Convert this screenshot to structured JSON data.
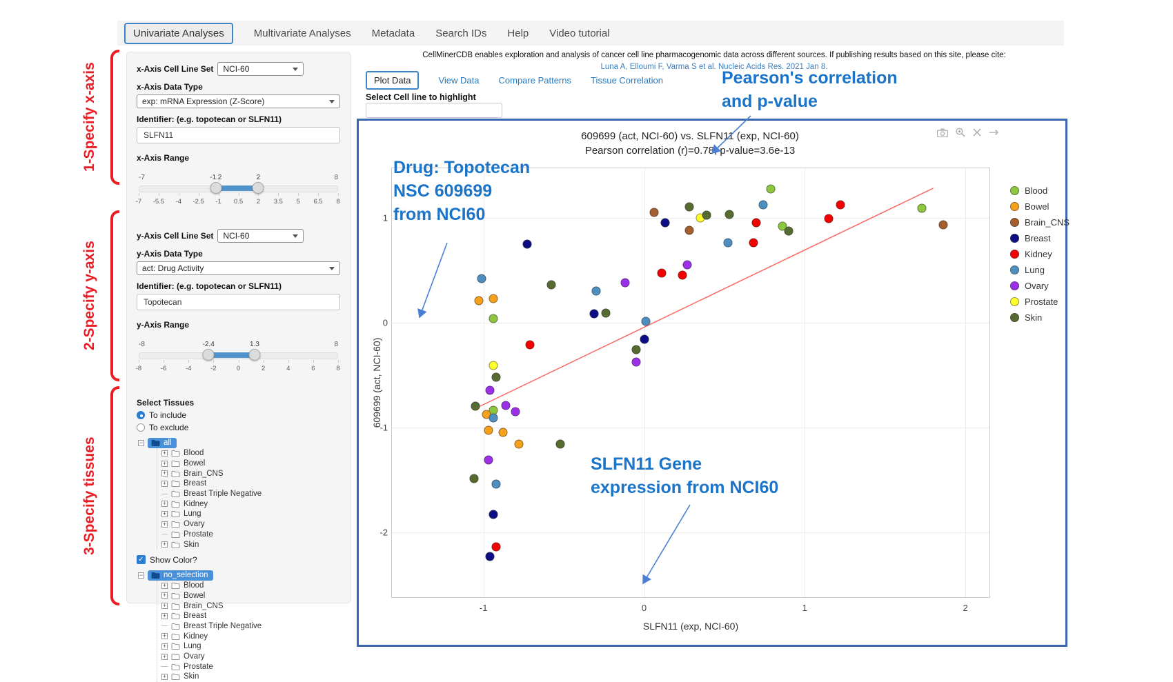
{
  "nav": {
    "items": [
      {
        "label": "Univariate Analyses",
        "active": true
      },
      {
        "label": "Multivariate Analyses",
        "active": false
      },
      {
        "label": "Metadata",
        "active": false
      },
      {
        "label": "Search IDs",
        "active": false
      },
      {
        "label": "Help",
        "active": false
      },
      {
        "label": "Video tutorial",
        "active": false
      }
    ]
  },
  "annotations": {
    "step1": "1-Specify x-axis",
    "step2": "2-Specify y-axis",
    "step3": "3-Specify tissues",
    "pearson_line1": "Pearson's correlation",
    "pearson_line2": "and p-value",
    "drug_line1": "Drug: Topotecan",
    "drug_line2": "NSC 609699",
    "drug_line3": "from NCI60",
    "gene_line1": "SLFN11 Gene",
    "gene_line2": "expression from NCI60",
    "blue": "#1b74c8",
    "red": "#ec1c24"
  },
  "sidebar": {
    "x_axis": {
      "cell_line_set_label": "x-Axis Cell Line Set",
      "cell_line_set_value": "NCI-60",
      "data_type_label": "x-Axis Data Type",
      "data_type_value": "exp: mRNA Expression (Z-Score)",
      "identifier_label": "Identifier: (e.g. topotecan or SLFN11)",
      "identifier_value": "SLFN11",
      "range_label": "x-Axis Range",
      "range": {
        "min": -7,
        "max": 8,
        "from": -1.2,
        "to": 2,
        "from_label": "-1.2",
        "to_label": "2",
        "min_label": "-7",
        "max_label": "8",
        "ticks": [
          "-7",
          "-5.5",
          "-4",
          "-2.5",
          "-1",
          "0.5",
          "2",
          "3.5",
          "5",
          "6.5",
          "8"
        ]
      }
    },
    "y_axis": {
      "cell_line_set_label": "y-Axis Cell Line Set",
      "cell_line_set_value": "NCI-60",
      "data_type_label": "y-Axis Data Type",
      "data_type_value": "act: Drug Activity",
      "identifier_label": "Identifier: (e.g. topotecan or SLFN11)",
      "identifier_value": "Topotecan",
      "range_label": "y-Axis Range",
      "range": {
        "min": -8,
        "max": 8,
        "from": -2.4,
        "to": 1.3,
        "from_label": "-2.4",
        "to_label": "1.3",
        "min_label": "-8",
        "max_label": "8",
        "ticks": [
          "-8",
          "-6",
          "-4",
          "-2",
          "0",
          "2",
          "4",
          "6",
          "8"
        ]
      }
    },
    "select_tissues_label": "Select Tissues",
    "radio_include": "To include",
    "radio_exclude": "To exclude",
    "radio_selected": "To include",
    "show_color_label": "Show Color?",
    "show_color_checked": true,
    "tree_include": {
      "root": "all",
      "children": [
        {
          "label": "Blood",
          "leaf": false
        },
        {
          "label": "Bowel",
          "leaf": false
        },
        {
          "label": "Brain_CNS",
          "leaf": false
        },
        {
          "label": "Breast",
          "leaf": false
        },
        {
          "label": "Breast Triple Negative",
          "leaf": true
        },
        {
          "label": "Kidney",
          "leaf": false
        },
        {
          "label": "Lung",
          "leaf": false
        },
        {
          "label": "Ovary",
          "leaf": false
        },
        {
          "label": "Prostate",
          "leaf": true
        },
        {
          "label": "Skin",
          "leaf": false
        }
      ]
    },
    "tree_highlight": {
      "root": "no_selection",
      "children": [
        {
          "label": "Blood",
          "leaf": false
        },
        {
          "label": "Bowel",
          "leaf": false
        },
        {
          "label": "Brain_CNS",
          "leaf": false
        },
        {
          "label": "Breast",
          "leaf": false
        },
        {
          "label": "Breast Triple Negative",
          "leaf": true
        },
        {
          "label": "Kidney",
          "leaf": false
        },
        {
          "label": "Lung",
          "leaf": false
        },
        {
          "label": "Ovary",
          "leaf": false
        },
        {
          "label": "Prostate",
          "leaf": true
        },
        {
          "label": "Skin",
          "leaf": false
        }
      ]
    }
  },
  "main": {
    "description": "CellMinerCDB enables exploration and analysis of cancer cell line pharmacogenomic data across different sources. If publishing results based on this site, please cite:",
    "citation": "Luna A, Elloumi F, Varma S et al. Nucleic Acids Res. 2021 Jan 8.",
    "tabs": [
      {
        "label": "Plot Data",
        "active": true
      },
      {
        "label": "View Data",
        "active": false
      },
      {
        "label": "Compare Patterns",
        "active": false
      },
      {
        "label": "Tissue Correlation",
        "active": false
      }
    ],
    "highlight_label": "Select Cell line to highlight",
    "highlight_value": "",
    "modebar_icons": [
      "camera-icon",
      "zoom-in-icon",
      "close-icon",
      "pan-icon"
    ]
  },
  "chart_data": {
    "type": "scatter",
    "title": "609699 (act, NCI-60) vs. SLFN11 (exp, NCI-60)",
    "subtitle": "Pearson correlation (r)=0.78, p-value=3.6e-13",
    "pearson_r": 0.78,
    "p_value": "3.6e-13",
    "xlabel": "SLFN11 (exp, NCI-60)",
    "ylabel": "609699 (act, NCI-60)",
    "xlim": [
      -1.57,
      2.15
    ],
    "ylim": [
      -2.62,
      1.47
    ],
    "xticks": [
      -1,
      0,
      1,
      2
    ],
    "yticks": [
      1,
      0,
      -1,
      -2
    ],
    "grid": true,
    "legend_position": "right",
    "marker_outline": "rgba(55,55,55,0.55)",
    "trendline": {
      "color": "#fb6a63",
      "x1": -1.05,
      "y1": -0.82,
      "x2": 1.8,
      "y2": 1.28
    },
    "series": [
      {
        "name": "Blood",
        "color": "#8dc63f",
        "points": [
          [
            -0.94,
            0.04
          ],
          [
            -0.94,
            -0.84
          ],
          [
            0.79,
            1.27
          ],
          [
            0.86,
            0.92
          ],
          [
            1.73,
            1.09
          ]
        ]
      },
      {
        "name": "Bowel",
        "color": "#f5a11c",
        "points": [
          [
            -1.03,
            0.21
          ],
          [
            -0.94,
            0.23
          ],
          [
            -0.98,
            -0.88
          ],
          [
            -0.97,
            -1.03
          ],
          [
            -0.88,
            -1.05
          ],
          [
            -0.78,
            -1.16
          ]
        ]
      },
      {
        "name": "Brain_CNS",
        "color": "#a65e2e",
        "points": [
          [
            0.06,
            1.05
          ],
          [
            0.28,
            0.88
          ],
          [
            1.86,
            0.93
          ]
        ]
      },
      {
        "name": "Breast",
        "color": "#0d0d86",
        "points": [
          [
            -0.73,
            0.75
          ],
          [
            -0.31,
            0.08
          ],
          [
            0.0,
            -0.16
          ],
          [
            -0.94,
            -1.83
          ],
          [
            -0.96,
            -2.23
          ],
          [
            0.13,
            0.95
          ]
        ]
      },
      {
        "name": "Kidney",
        "color": "#f40000",
        "points": [
          [
            -0.71,
            -0.21
          ],
          [
            -0.92,
            -2.14
          ],
          [
            0.11,
            0.47
          ],
          [
            0.24,
            0.45
          ],
          [
            0.68,
            0.76
          ],
          [
            0.7,
            0.95
          ],
          [
            1.15,
            0.99
          ],
          [
            1.22,
            1.12
          ]
        ]
      },
      {
        "name": "Lung",
        "color": "#4f8fc0",
        "points": [
          [
            -1.01,
            0.42
          ],
          [
            -0.3,
            0.3
          ],
          [
            0.01,
            0.01
          ],
          [
            -0.94,
            -0.91
          ],
          [
            -0.92,
            -1.54
          ],
          [
            0.52,
            0.76
          ],
          [
            0.74,
            1.12
          ]
        ]
      },
      {
        "name": "Ovary",
        "color": "#9b30e8",
        "points": [
          [
            -0.96,
            -0.65
          ],
          [
            -0.86,
            -0.79
          ],
          [
            -0.8,
            -0.85
          ],
          [
            -0.97,
            -1.31
          ],
          [
            -0.05,
            -0.38
          ],
          [
            -0.12,
            0.38
          ],
          [
            0.27,
            0.55
          ]
        ]
      },
      {
        "name": "Prostate",
        "color": "#ffff2e",
        "points": [
          [
            -0.94,
            -0.41
          ],
          [
            0.35,
            1.0
          ]
        ]
      },
      {
        "name": "Skin",
        "color": "#556b2f",
        "points": [
          [
            -0.58,
            0.36
          ],
          [
            -0.05,
            -0.26
          ],
          [
            -0.24,
            0.09
          ],
          [
            -0.92,
            -0.52
          ],
          [
            -1.05,
            -0.8
          ],
          [
            -0.52,
            -1.16
          ],
          [
            -1.06,
            -1.49
          ],
          [
            0.28,
            1.1
          ],
          [
            0.53,
            1.03
          ],
          [
            0.9,
            0.87
          ],
          [
            0.39,
            1.02
          ]
        ]
      }
    ]
  }
}
